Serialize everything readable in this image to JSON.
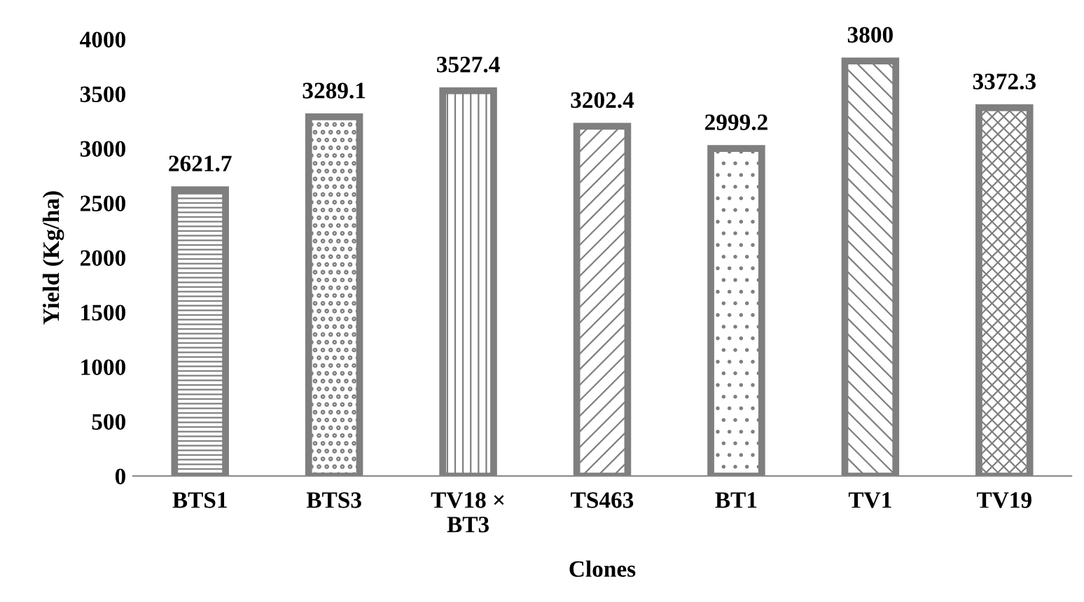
{
  "chart_data": {
    "type": "bar",
    "xlabel": "Clones",
    "ylabel": "Yield (Kg/ha)",
    "categories": [
      "BTS1",
      "BTS3",
      "TV18 × BT3",
      "TS463",
      "BT1",
      "TV1",
      "TV19"
    ],
    "values": [
      2621.7,
      3289.1,
      3527.4,
      3202.4,
      2999.2,
      3800,
      3372.3
    ],
    "color": "#7f7f7f",
    "ylim": [
      0,
      4000
    ],
    "yticks": [
      0,
      500,
      1000,
      1500,
      2000,
      2500,
      3000,
      3500,
      4000
    ],
    "grid": false,
    "data_labels": true
  }
}
